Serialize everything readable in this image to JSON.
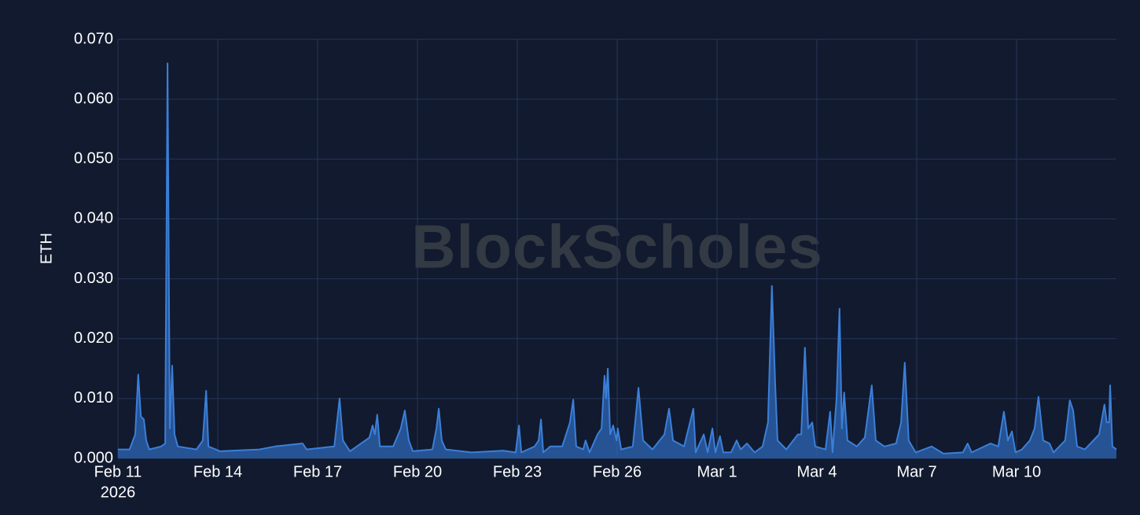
{
  "chart_data": {
    "type": "area",
    "y_axis_label": "ETH",
    "watermark": "BlockScholes",
    "color": "#3b7fd9",
    "fill_color": "#2a5ea6",
    "grid": true,
    "xlim": [
      0,
      30
    ],
    "xticks": [
      {
        "value": 0,
        "label": "Feb 11"
      },
      {
        "value": 3,
        "label": "Feb 14"
      },
      {
        "value": 6,
        "label": "Feb 17"
      },
      {
        "value": 9,
        "label": "Feb 20"
      },
      {
        "value": 12,
        "label": "Feb 23"
      },
      {
        "value": 15,
        "label": "Feb 26"
      },
      {
        "value": 18,
        "label": "Mar 1"
      },
      {
        "value": 21,
        "label": "Mar 4"
      },
      {
        "value": 24,
        "label": "Mar 7"
      },
      {
        "value": 27,
        "label": "Mar 10"
      }
    ],
    "year_label": "2026",
    "ylim": [
      0,
      0.07
    ],
    "yticks": [
      {
        "value": 0,
        "label": "0.000"
      },
      {
        "value": 0.01,
        "label": "0.010"
      },
      {
        "value": 0.02,
        "label": "0.020"
      },
      {
        "value": 0.03,
        "label": "0.030"
      },
      {
        "value": 0.04,
        "label": "0.040"
      },
      {
        "value": 0.05,
        "label": "0.050"
      },
      {
        "value": 0.06,
        "label": "0.060"
      },
      {
        "value": 0.07,
        "label": "0.070"
      }
    ],
    "x": [
      0,
      0.35,
      0.52,
      0.61,
      0.69,
      0.78,
      0.85,
      0.94,
      1.3,
      1.42,
      1.49,
      1.56,
      1.63,
      1.7,
      1.8,
      2.36,
      2.55,
      2.65,
      2.72,
      3.07,
      4.25,
      4.72,
      5.55,
      5.67,
      6.5,
      6.66,
      6.76,
      6.97,
      7.56,
      7.65,
      7.72,
      7.79,
      7.87,
      8.27,
      8.5,
      8.62,
      8.74,
      8.86,
      9.45,
      9.57,
      9.64,
      9.73,
      9.85,
      10.63,
      11.57,
      11.95,
      12.05,
      12.12,
      12.52,
      12.64,
      12.71,
      12.78,
      12.99,
      13.35,
      13.58,
      13.68,
      13.77,
      13.98,
      14.05,
      14.17,
      14.41,
      14.53,
      14.62,
      14.67,
      14.72,
      14.79,
      14.88,
      14.98,
      15.02,
      15.12,
      15.47,
      15.64,
      15.78,
      16.06,
      16.42,
      16.56,
      16.68,
      17.01,
      17.29,
      17.36,
      17.6,
      17.72,
      17.86,
      17.95,
      18.09,
      18.19,
      18.42,
      18.59,
      18.71,
      18.9,
      19.13,
      19.37,
      19.53,
      19.65,
      19.75,
      19.82,
      20.08,
      20.43,
      20.53,
      20.64,
      20.74,
      20.86,
      20.95,
      21.26,
      21.4,
      21.47,
      21.59,
      21.68,
      21.75,
      21.82,
      21.92,
      22.2,
      22.44,
      22.65,
      22.77,
      23.03,
      23.38,
      23.53,
      23.64,
      23.76,
      23.97,
      24.45,
      24.8,
      25.39,
      25.53,
      25.65,
      26.22,
      26.45,
      26.62,
      26.74,
      26.86,
      26.97,
      27.16,
      27.4,
      27.54,
      27.66,
      27.8,
      27.99,
      28.11,
      28.46,
      28.6,
      28.7,
      28.82,
      29.05,
      29.48,
      29.64,
      29.71,
      29.78,
      29.81,
      29.88,
      30.0
    ],
    "values": [
      0.0015,
      0.0015,
      0.004,
      0.014,
      0.007,
      0.0065,
      0.003,
      0.0015,
      0.002,
      0.0025,
      0.066,
      0.005,
      0.0155,
      0.004,
      0.002,
      0.0015,
      0.003,
      0.0113,
      0.002,
      0.0012,
      0.0015,
      0.002,
      0.0025,
      0.0015,
      0.002,
      0.01,
      0.003,
      0.0012,
      0.0035,
      0.0055,
      0.004,
      0.0073,
      0.002,
      0.002,
      0.005,
      0.008,
      0.003,
      0.0012,
      0.0015,
      0.005,
      0.0083,
      0.003,
      0.0015,
      0.001,
      0.0013,
      0.001,
      0.0055,
      0.001,
      0.002,
      0.003,
      0.0065,
      0.001,
      0.002,
      0.002,
      0.006,
      0.0098,
      0.002,
      0.0015,
      0.003,
      0.001,
      0.004,
      0.005,
      0.0138,
      0.01,
      0.015,
      0.004,
      0.0055,
      0.003,
      0.005,
      0.0015,
      0.002,
      0.0118,
      0.003,
      0.0015,
      0.004,
      0.0083,
      0.003,
      0.002,
      0.0083,
      0.001,
      0.004,
      0.001,
      0.005,
      0.001,
      0.0037,
      0.001,
      0.001,
      0.003,
      0.0015,
      0.0025,
      0.001,
      0.002,
      0.006,
      0.0288,
      0.012,
      0.003,
      0.0015,
      0.004,
      0.004,
      0.0185,
      0.005,
      0.006,
      0.002,
      0.0015,
      0.0078,
      0.001,
      0.01,
      0.025,
      0.005,
      0.011,
      0.003,
      0.002,
      0.0035,
      0.0122,
      0.003,
      0.002,
      0.0025,
      0.006,
      0.016,
      0.003,
      0.001,
      0.002,
      0.0008,
      0.001,
      0.0025,
      0.001,
      0.0025,
      0.002,
      0.0078,
      0.003,
      0.0045,
      0.001,
      0.0015,
      0.003,
      0.005,
      0.0103,
      0.003,
      0.0025,
      0.001,
      0.003,
      0.0097,
      0.008,
      0.002,
      0.0015,
      0.004,
      0.009,
      0.006,
      0.006,
      0.0122,
      0.002,
      0.0015
    ]
  }
}
